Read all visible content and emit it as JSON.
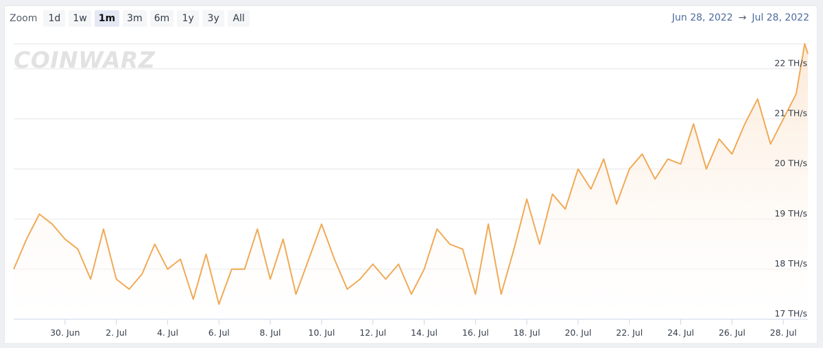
{
  "zoom": {
    "label": "Zoom",
    "buttons": [
      "1d",
      "1w",
      "1m",
      "3m",
      "6m",
      "1y",
      "3y",
      "All"
    ],
    "active": "1m"
  },
  "range": {
    "from": "Jun 28, 2022",
    "arrow": "→",
    "to": "Jul 28, 2022"
  },
  "watermark": "COINWARZ",
  "colors": {
    "line": "#f0a955",
    "fill_top": "#fbe7d3",
    "grid": "#e6e6e6",
    "range_text": "#4a6a9c"
  },
  "chart_data": {
    "type": "area",
    "title": "",
    "xlabel": "",
    "ylabel": "",
    "y_unit": "TH/s",
    "ylim": [
      17,
      22.5
    ],
    "xlim": [
      "2022-06-28",
      "2022-07-28T23:00"
    ],
    "x_tick_labels": [
      "30. Jun",
      "2. Jul",
      "4. Jul",
      "6. Jul",
      "8. Jul",
      "10. Jul",
      "12. Jul",
      "14. Jul",
      "16. Jul",
      "18. Jul",
      "20. Jul",
      "22. Jul",
      "24. Jul",
      "26. Jul",
      "28. Jul"
    ],
    "y_tick_labels": [
      "17 TH/s",
      "18 TH/s",
      "19 TH/s",
      "20 TH/s",
      "21 TH/s",
      "22 TH/s"
    ],
    "y_ticks": [
      17,
      18,
      19,
      20,
      21,
      22
    ],
    "grid": true,
    "series": [
      {
        "points": [
          [
            "2022-06-28T00:00",
            18.0
          ],
          [
            "2022-06-28T12:00",
            18.6
          ],
          [
            "2022-06-29T00:00",
            19.1
          ],
          [
            "2022-06-29T12:00",
            18.9
          ],
          [
            "2022-06-30T00:00",
            18.6
          ],
          [
            "2022-06-30T12:00",
            18.4
          ],
          [
            "2022-07-01T00:00",
            17.8
          ],
          [
            "2022-07-01T12:00",
            18.8
          ],
          [
            "2022-07-02T00:00",
            17.8
          ],
          [
            "2022-07-02T12:00",
            17.6
          ],
          [
            "2022-07-03T00:00",
            17.9
          ],
          [
            "2022-07-03T12:00",
            18.5
          ],
          [
            "2022-07-04T00:00",
            18.0
          ],
          [
            "2022-07-04T12:00",
            18.2
          ],
          [
            "2022-07-05T00:00",
            17.4
          ],
          [
            "2022-07-05T12:00",
            18.3
          ],
          [
            "2022-07-06T00:00",
            17.3
          ],
          [
            "2022-07-06T12:00",
            18.0
          ],
          [
            "2022-07-07T00:00",
            18.0
          ],
          [
            "2022-07-07T12:00",
            18.8
          ],
          [
            "2022-07-08T00:00",
            17.8
          ],
          [
            "2022-07-08T12:00",
            18.6
          ],
          [
            "2022-07-09T00:00",
            17.5
          ],
          [
            "2022-07-09T12:00",
            18.2
          ],
          [
            "2022-07-10T00:00",
            18.9
          ],
          [
            "2022-07-10T12:00",
            18.2
          ],
          [
            "2022-07-11T00:00",
            17.6
          ],
          [
            "2022-07-11T12:00",
            17.8
          ],
          [
            "2022-07-12T00:00",
            18.1
          ],
          [
            "2022-07-12T12:00",
            17.8
          ],
          [
            "2022-07-13T00:00",
            18.1
          ],
          [
            "2022-07-13T12:00",
            17.5
          ],
          [
            "2022-07-14T00:00",
            18.0
          ],
          [
            "2022-07-14T12:00",
            18.8
          ],
          [
            "2022-07-15T00:00",
            18.5
          ],
          [
            "2022-07-15T12:00",
            18.4
          ],
          [
            "2022-07-16T00:00",
            17.5
          ],
          [
            "2022-07-16T12:00",
            18.9
          ],
          [
            "2022-07-17T00:00",
            17.5
          ],
          [
            "2022-07-17T12:00",
            18.4
          ],
          [
            "2022-07-18T00:00",
            19.4
          ],
          [
            "2022-07-18T12:00",
            18.5
          ],
          [
            "2022-07-19T00:00",
            19.5
          ],
          [
            "2022-07-19T12:00",
            19.2
          ],
          [
            "2022-07-20T00:00",
            20.0
          ],
          [
            "2022-07-20T12:00",
            19.6
          ],
          [
            "2022-07-21T00:00",
            20.2
          ],
          [
            "2022-07-21T12:00",
            19.3
          ],
          [
            "2022-07-22T00:00",
            20.0
          ],
          [
            "2022-07-22T12:00",
            20.3
          ],
          [
            "2022-07-23T00:00",
            19.8
          ],
          [
            "2022-07-23T12:00",
            20.2
          ],
          [
            "2022-07-24T00:00",
            20.1
          ],
          [
            "2022-07-24T12:00",
            20.9
          ],
          [
            "2022-07-25T00:00",
            20.0
          ],
          [
            "2022-07-25T12:00",
            20.6
          ],
          [
            "2022-07-26T00:00",
            20.3
          ],
          [
            "2022-07-26T12:00",
            20.9
          ],
          [
            "2022-07-27T00:00",
            21.4
          ],
          [
            "2022-07-27T12:00",
            20.5
          ],
          [
            "2022-07-28T00:00",
            21.0
          ],
          [
            "2022-07-28T12:00",
            21.5
          ],
          [
            "2022-07-28T20:00",
            22.5
          ],
          [
            "2022-07-28T23:00",
            22.3
          ]
        ]
      }
    ]
  }
}
